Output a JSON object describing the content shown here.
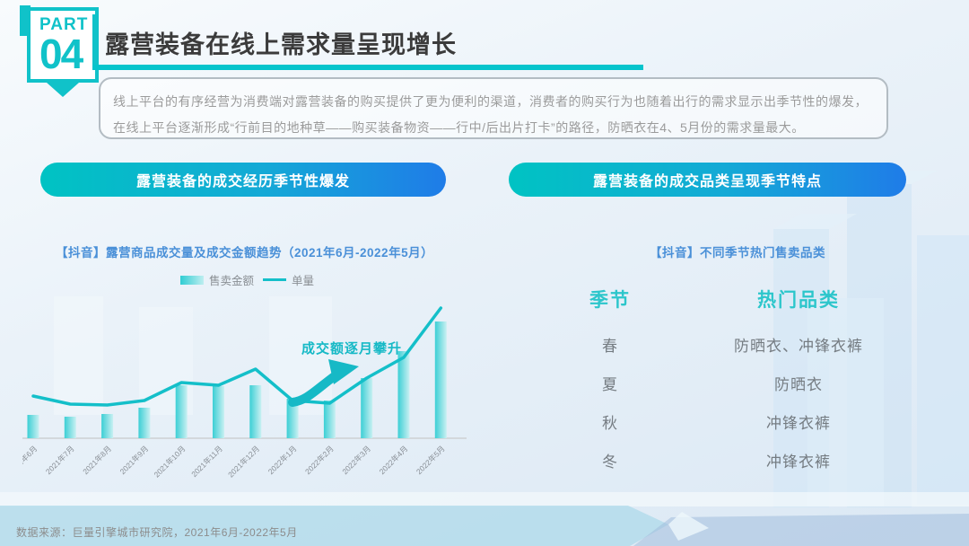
{
  "page": {
    "part_label": "PART",
    "part_number": "04",
    "title": "露营装备在线上需求量呈现增长",
    "intro": "线上平台的有序经营为消费端对露营装备的购买提供了更为便利的渠道，消费者的购买行为也随着出行的需求显示出季节性的爆发，在线上平台逐渐形成“行前目的地种草——购买装备物资——行中/后出片打卡”的路径，防晒衣在4、5月份的需求量最大。",
    "source": "数据来源：巨量引擎城市研究院，2021年6月-2022年5月"
  },
  "buttons": {
    "left_label": "露营装备的成交经历季节性爆发",
    "right_label": "露营装备的成交品类呈现季节特点"
  },
  "left_section": {
    "title": "【抖音】露营商品成交量及成交金额趋势（2021年6月-2022年5月）",
    "annotation": "成交额逐月攀升"
  },
  "right_section": {
    "title": "【抖音】不同季节热门售卖品类",
    "table": {
      "headers": [
        "季节",
        "热门品类"
      ],
      "rows": [
        [
          "春",
          "防晒衣、冲锋衣裤"
        ],
        [
          "夏",
          "防晒衣"
        ],
        [
          "秋",
          "冲锋衣裤"
        ],
        [
          "冬",
          "冲锋衣裤"
        ]
      ]
    }
  },
  "chart_data": {
    "type": "bar",
    "title": "【抖音】露营商品成交量及成交金额趋势（2021年6月-2022年5月）",
    "categories": [
      "2021年6月",
      "2021年7月",
      "2021年8月",
      "2021年9月",
      "2021年10月",
      "2021年11月",
      "2021年12月",
      "2022年1月",
      "2022年2月",
      "2022年3月",
      "2022年4月",
      "2022年5月"
    ],
    "series": [
      {
        "name": "售卖金额",
        "type": "bar",
        "values": [
          26,
          24,
          27,
          34,
          59,
          58,
          59,
          44,
          42,
          67,
          97,
          130
        ]
      },
      {
        "name": "单量",
        "type": "line",
        "values": [
          47,
          38,
          37,
          42,
          62,
          59,
          77,
          42,
          39,
          67,
          90,
          145
        ]
      }
    ],
    "units": "relative (no y-axis shown)",
    "ylim": [
      0,
      160
    ],
    "grid": false,
    "legend_position": "top-center",
    "annotation": "成交额逐月攀升",
    "xlabel": "",
    "ylabel": ""
  },
  "colors": {
    "accent_teal": "#10c2c9",
    "button_gradient_start": "#00c3c3",
    "button_gradient_end": "#1f7ce8",
    "section_title_blue": "#4a90d8",
    "bar_fill": "#53d6da",
    "line_stroke": "#14bfc9",
    "table_header_teal": "#2cc6cb",
    "body_text_gray": "#9b9b9b",
    "title_dark": "#3b3b3b"
  }
}
